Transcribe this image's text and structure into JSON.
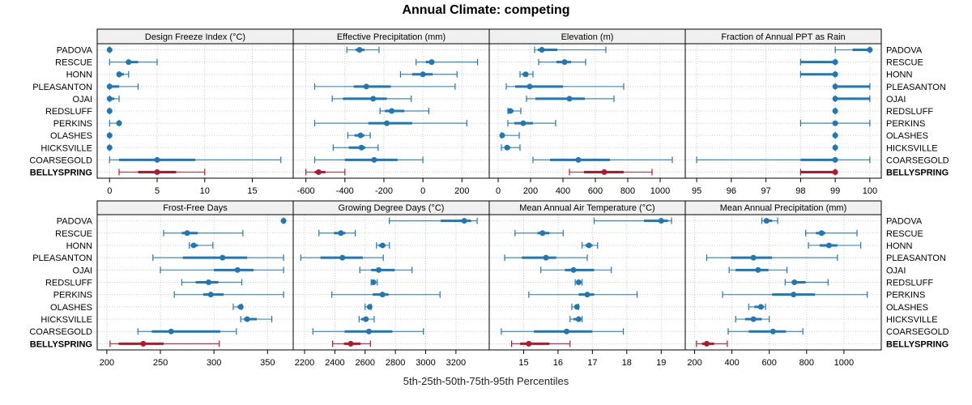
{
  "chart_data": {
    "type": "dot-interval",
    "title": "Annual Climate: competing",
    "xlabel": "5th-25th-50th-75th-95th Percentiles",
    "series_colors": {
      "competing": "#1f77b4",
      "reference": "#b2182b"
    },
    "sites": [
      "PADOVA",
      "RESCUE",
      "HONN",
      "PLEASANTON",
      "OJAI",
      "REDSLUFF",
      "PERKINS",
      "OLASHES",
      "HICKSVILLE",
      "COARSEGOLD",
      "BELLYSPRING"
    ],
    "highlight_site": "BELLYSPRING",
    "percentile_order": [
      "p5",
      "p25",
      "p50",
      "p75",
      "p95"
    ],
    "panels": [
      {
        "title": "Design Freeze Index (°C)",
        "xlim": [
          -1.3,
          19.3
        ],
        "ticks": [
          0,
          5,
          10,
          15
        ],
        "values": [
          [
            0,
            0,
            0,
            0,
            0
          ],
          [
            0,
            2,
            2,
            3,
            5
          ],
          [
            1,
            1,
            1,
            1.5,
            2
          ],
          [
            0,
            0,
            0,
            1,
            3
          ],
          [
            0,
            0,
            0,
            0.5,
            1
          ],
          [
            0,
            0,
            0,
            0,
            0
          ],
          [
            0,
            1,
            1,
            1,
            1
          ],
          [
            0,
            0,
            0,
            0,
            0
          ],
          [
            0,
            0,
            0,
            0,
            0
          ],
          [
            0,
            1,
            5,
            9,
            18
          ],
          [
            1,
            3,
            5,
            7,
            10
          ]
        ]
      },
      {
        "title": "Effective Precipitation (mm)",
        "xlim": [
          -665,
          340
        ],
        "ticks": [
          -600,
          -400,
          -200,
          0,
          200
        ],
        "values": [
          [
            -390,
            -345,
            -325,
            -300,
            -225
          ],
          [
            -35,
            15,
            45,
            55,
            280
          ],
          [
            -115,
            -55,
            0,
            50,
            175
          ],
          [
            -555,
            -355,
            -290,
            -165,
            165
          ],
          [
            -465,
            -410,
            -255,
            -185,
            -60
          ],
          [
            -220,
            -195,
            -160,
            -95,
            30
          ],
          [
            -555,
            -280,
            -185,
            -55,
            225
          ],
          [
            -385,
            -350,
            -320,
            -300,
            -270
          ],
          [
            -460,
            -380,
            -315,
            -295,
            -230
          ],
          [
            -555,
            -400,
            -250,
            -130,
            0
          ],
          [
            -600,
            -555,
            -535,
            -500,
            -400
          ]
        ]
      },
      {
        "title": "Elevation (m)",
        "xlim": [
          -55,
          1155
        ],
        "ticks": [
          0,
          200,
          400,
          600,
          800,
          1000
        ],
        "values": [
          [
            225,
            245,
            270,
            365,
            665
          ],
          [
            250,
            360,
            410,
            450,
            540
          ],
          [
            135,
            150,
            170,
            185,
            215
          ],
          [
            50,
            105,
            195,
            400,
            775
          ],
          [
            175,
            230,
            440,
            535,
            715
          ],
          [
            60,
            65,
            75,
            95,
            140
          ],
          [
            60,
            100,
            155,
            215,
            355
          ],
          [
            20,
            25,
            25,
            40,
            130
          ],
          [
            20,
            40,
            55,
            75,
            135
          ],
          [
            215,
            320,
            495,
            690,
            1075
          ],
          [
            440,
            530,
            655,
            775,
            950
          ]
        ]
      },
      {
        "title": "Fraction of Annual PPT as Rain",
        "xlim": [
          94.67,
          100.33
        ],
        "ticks": [
          95,
          96,
          97,
          98,
          99,
          100
        ],
        "values": [
          [
            99,
            99.5,
            100,
            100,
            100
          ],
          [
            98,
            98,
            99,
            99,
            99
          ],
          [
            98,
            98,
            99,
            99,
            99
          ],
          [
            99,
            99,
            99,
            100,
            100
          ],
          [
            99,
            99,
            99,
            100,
            100
          ],
          [
            99,
            99,
            99,
            99,
            99
          ],
          [
            98,
            99,
            99,
            99,
            100
          ],
          [
            99,
            99,
            99,
            99,
            99
          ],
          [
            99,
            99,
            99,
            99,
            99
          ],
          [
            95,
            98,
            99,
            99,
            100
          ],
          [
            98,
            98,
            99,
            99,
            99
          ]
        ]
      },
      {
        "title": "Frost-Free Days",
        "xlim": [
          191,
          374
        ],
        "ticks": [
          200,
          250,
          300,
          350
        ],
        "values": [
          [
            365,
            365,
            365,
            365,
            365
          ],
          [
            253,
            270,
            275,
            285,
            327
          ],
          [
            277,
            280,
            281,
            285,
            299
          ],
          [
            243,
            271,
            308,
            331,
            365
          ],
          [
            250,
            300,
            322,
            337,
            365
          ],
          [
            270,
            283,
            295,
            304,
            326
          ],
          [
            263,
            290,
            297,
            309,
            365
          ],
          [
            318,
            322,
            325,
            326,
            326
          ],
          [
            325,
            328,
            331,
            340,
            354
          ],
          [
            229,
            242,
            260,
            306,
            321
          ],
          [
            203,
            211,
            234,
            253,
            305
          ]
        ]
      },
      {
        "title": "Growing Degree Days (°C)",
        "xlim": [
          2125,
          3420
        ],
        "ticks": [
          2200,
          2400,
          2600,
          2800,
          3000,
          3200
        ],
        "values": [
          [
            2760,
            3100,
            3255,
            3300,
            3340
          ],
          [
            2295,
            2395,
            2440,
            2470,
            2535
          ],
          [
            2675,
            2690,
            2715,
            2735,
            2760
          ],
          [
            2175,
            2305,
            2450,
            2585,
            2720
          ],
          [
            2565,
            2640,
            2690,
            2795,
            2910
          ],
          [
            2640,
            2650,
            2655,
            2665,
            2680
          ],
          [
            2380,
            2650,
            2715,
            2755,
            3095
          ],
          [
            2600,
            2620,
            2630,
            2635,
            2640
          ],
          [
            2560,
            2575,
            2605,
            2620,
            2660
          ],
          [
            2255,
            2465,
            2625,
            2780,
            2985
          ],
          [
            2385,
            2460,
            2505,
            2570,
            2635
          ]
        ]
      },
      {
        "title": "Mean Annual Air Temperature (°C)",
        "xlim": [
          14.0,
          19.7
        ],
        "ticks": [
          15,
          16,
          17,
          18,
          19
        ],
        "values": [
          [
            17.05,
            18.5,
            19.0,
            19.2,
            19.3
          ],
          [
            14.75,
            15.4,
            15.55,
            15.75,
            16.15
          ],
          [
            16.7,
            16.8,
            16.9,
            17.0,
            17.15
          ],
          [
            14.45,
            14.95,
            15.65,
            15.95,
            16.85
          ],
          [
            15.5,
            16.2,
            16.45,
            17.05,
            17.55
          ],
          [
            16.5,
            16.55,
            16.6,
            16.65,
            16.7
          ],
          [
            15.15,
            16.6,
            16.85,
            17.05,
            18.3
          ],
          [
            16.4,
            16.5,
            16.55,
            16.55,
            16.6
          ],
          [
            16.35,
            16.45,
            16.6,
            16.65,
            16.7
          ],
          [
            14.35,
            15.3,
            16.25,
            17.0,
            17.9
          ],
          [
            14.65,
            14.9,
            15.15,
            15.75,
            16.35
          ]
        ]
      },
      {
        "title": "Mean Annual Precipitation (mm)",
        "xlim": [
          150,
          1200
        ],
        "ticks": [
          200,
          400,
          600,
          800,
          1000
        ],
        "values": [
          [
            560,
            575,
            585,
            615,
            645
          ],
          [
            795,
            850,
            880,
            900,
            1070
          ],
          [
            810,
            870,
            920,
            965,
            1090
          ],
          [
            265,
            395,
            515,
            615,
            965
          ],
          [
            385,
            420,
            540,
            595,
            695
          ],
          [
            685,
            720,
            735,
            795,
            915
          ],
          [
            350,
            615,
            730,
            845,
            1125
          ],
          [
            490,
            520,
            555,
            570,
            580
          ],
          [
            420,
            470,
            515,
            560,
            600
          ],
          [
            380,
            490,
            620,
            690,
            780
          ],
          [
            210,
            240,
            265,
            305,
            375
          ]
        ]
      }
    ]
  }
}
